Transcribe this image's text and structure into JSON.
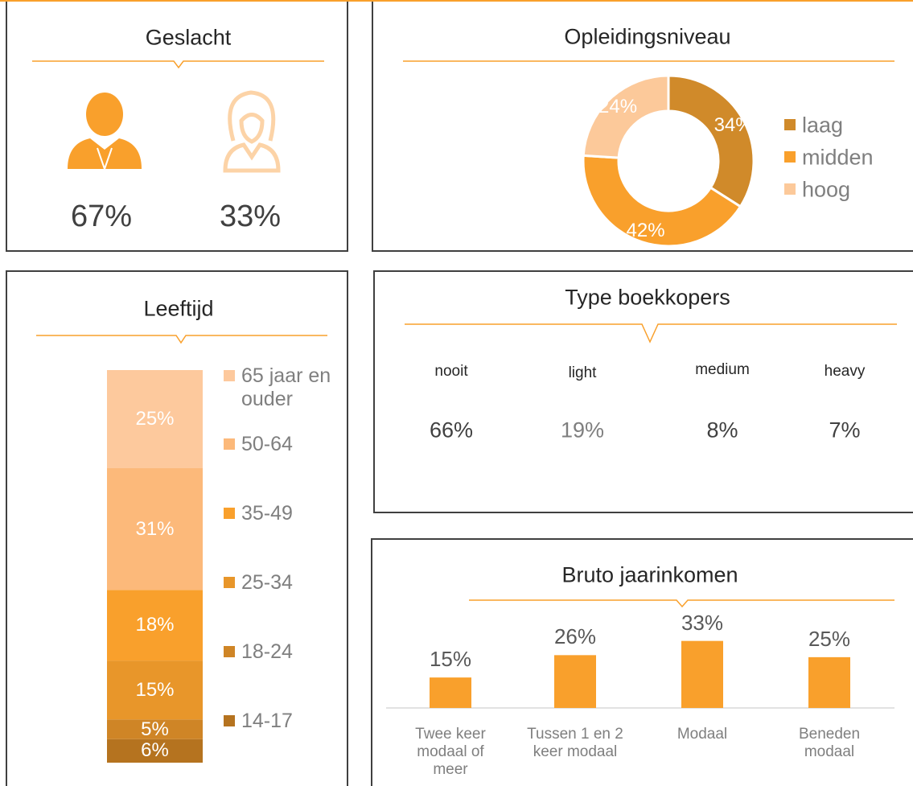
{
  "chart_data": [
    {
      "type": "icon",
      "title": "Geslacht",
      "values": [
        67,
        33
      ],
      "value_labels": [
        "67%",
        "33%"
      ],
      "colors": [
        "#f9a02c",
        "#fcd3a7"
      ]
    },
    {
      "type": "pie",
      "title": "Opleidingsniveau",
      "categories": [
        "laag",
        "midden",
        "hoog"
      ],
      "values": [
        34,
        42,
        24
      ],
      "value_labels": [
        "34%",
        "42%",
        "24%"
      ],
      "colors": [
        "#d08a2a",
        "#f9a02c",
        "#fcc99a"
      ],
      "legend": "right"
    },
    {
      "type": "stacked_bar",
      "title": "Leeftijd",
      "ylim": [
        0,
        100
      ],
      "legend": "right",
      "series": [
        {
          "name": "65 jaar en ouder",
          "color": "#fdc99d",
          "values": [
            25
          ],
          "value_labels": [
            "25%"
          ]
        },
        {
          "name": "50-64",
          "color": "#fcb97a",
          "values": [
            31
          ],
          "value_labels": [
            "31%"
          ]
        },
        {
          "name": "35-49",
          "color": "#f9a02c",
          "values": [
            18
          ],
          "value_labels": [
            "18%"
          ]
        },
        {
          "name": "25-34",
          "color": "#e8962a",
          "values": [
            15
          ],
          "value_labels": [
            "15%"
          ]
        },
        {
          "name": "18-24",
          "color": "#cf8526",
          "values": [
            5
          ],
          "value_labels": [
            "5%"
          ]
        },
        {
          "name": "14-17",
          "color": "#b5731f",
          "values": [
            6
          ],
          "value_labels": [
            "6%"
          ]
        }
      ]
    },
    {
      "type": "kpi",
      "title": "Type boekkopers",
      "categories": [
        "nooit",
        "light",
        "medium",
        "heavy"
      ],
      "values": [
        66,
        19,
        8,
        7
      ],
      "value_labels": [
        "66%",
        "19%",
        "8%",
        "7%"
      ]
    },
    {
      "type": "bar",
      "title": "Bruto jaarinkomen",
      "categories": [
        "Twee keer modaal of meer",
        "Tussen 1 en 2 keer modaal",
        "Modaal",
        "Beneden modaal"
      ],
      "values": [
        15,
        26,
        33,
        25
      ],
      "value_labels": [
        "15%",
        "26%",
        "33%",
        "25%"
      ],
      "color": "#f9a02c",
      "ylim": [
        0,
        40
      ]
    }
  ]
}
